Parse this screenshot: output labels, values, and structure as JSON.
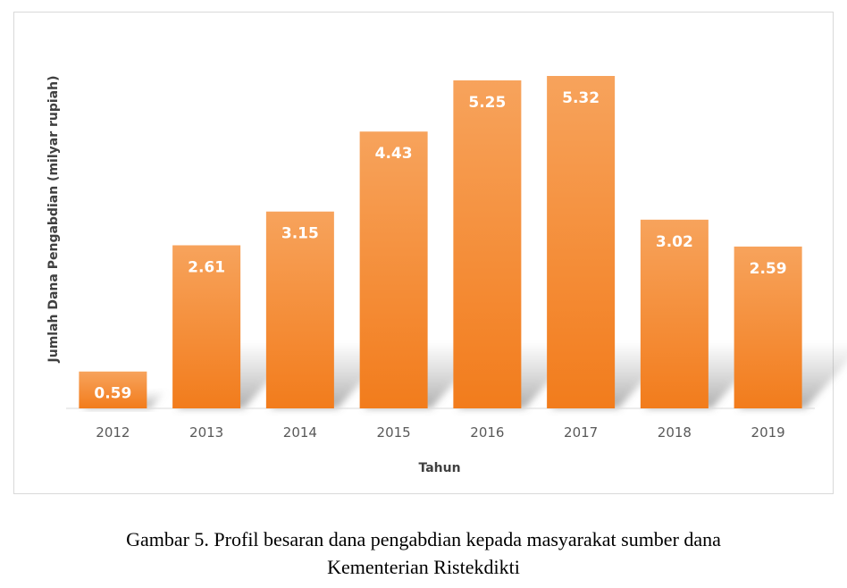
{
  "chart_data": {
    "type": "bar",
    "categories": [
      "2012",
      "2013",
      "2014",
      "2015",
      "2016",
      "2017",
      "2018",
      "2019"
    ],
    "values": [
      0.59,
      2.61,
      3.15,
      4.43,
      5.25,
      5.32,
      3.02,
      2.59
    ],
    "data_labels": [
      "0.59",
      "2.61",
      "3.15",
      "4.43",
      "5.25",
      "5.32",
      "3.02",
      "2.59"
    ],
    "xlabel": "Tahun",
    "ylabel": "Jumlah Dana Pengabdian (milyar rupiah)",
    "ylim": [
      0,
      5.32
    ],
    "grid": false,
    "legend": "none",
    "colors": {
      "bar_top": "#f7a35c",
      "bar_bottom": "#f27c1c",
      "label": "#ffffff",
      "tick": "#595959",
      "axis": "#d9d9d9"
    }
  },
  "caption": {
    "line1": "Gambar 5. Profil besaran dana pengabdian kepada masyarakat sumber dana",
    "line2": "Kementerian Ristekdikti"
  }
}
